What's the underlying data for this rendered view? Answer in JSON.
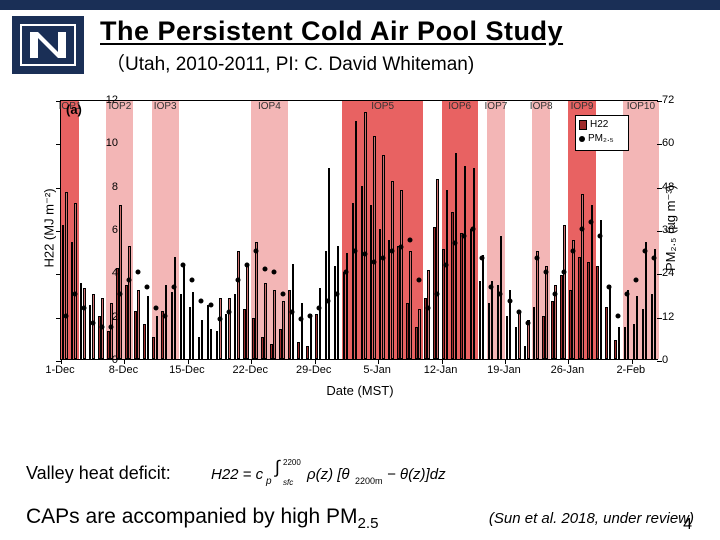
{
  "header": {
    "title": "The Persistent Cold Air Pool Study",
    "subtitle": "（Utah, 2010-2011, PI: C. David Whiteman)"
  },
  "chart": {
    "panel_label": "(a)",
    "y_left": {
      "label": "H22 (MJ m⁻²)",
      "min": 0,
      "max": 12,
      "ticks": [
        0,
        2,
        4,
        6,
        8,
        10,
        12
      ]
    },
    "y_right": {
      "label": "PM₂.₅ (µg m⁻³)",
      "min": 0,
      "max": 72,
      "ticks": [
        0,
        12,
        24,
        36,
        48,
        60,
        72
      ]
    },
    "x": {
      "label": "Date (MST)",
      "ticks": [
        "1-Dec",
        "8-Dec",
        "15-Dec",
        "22-Dec",
        "29-Dec",
        "5-Jan",
        "12-Jan",
        "19-Jan",
        "26-Jan",
        "2-Feb"
      ],
      "tick_days": [
        0,
        7,
        14,
        21,
        28,
        35,
        42,
        49,
        56,
        63
      ],
      "n_days": 66
    },
    "legend": {
      "items": [
        "H22",
        "PM₂.₅"
      ]
    },
    "iop_labels": [
      "IOP1",
      "IOP2",
      "IOP3",
      "IOP4",
      "IOP5",
      "IOP6",
      "IOP7",
      "IOP8",
      "IOP9",
      "IOP10"
    ],
    "iop_bands": [
      {
        "start": 0,
        "end": 2,
        "strong": true
      },
      {
        "start": 5,
        "end": 8,
        "strong": false
      },
      {
        "start": 10,
        "end": 13,
        "strong": false
      },
      {
        "start": 21,
        "end": 25,
        "strong": false
      },
      {
        "start": 31,
        "end": 40,
        "strong": true
      },
      {
        "start": 42,
        "end": 46,
        "strong": true
      },
      {
        "start": 47,
        "end": 49,
        "strong": false
      },
      {
        "start": 52,
        "end": 54,
        "strong": false
      },
      {
        "start": 56,
        "end": 59,
        "strong": true
      },
      {
        "start": 62,
        "end": 66,
        "strong": false
      }
    ],
    "h22_pairs": [
      [
        6.2,
        7.7
      ],
      [
        5.4,
        7.2
      ],
      [
        3.5,
        3.3
      ],
      [
        2.5,
        3.0
      ],
      [
        2.0,
        2.8
      ],
      [
        1.3,
        2.6
      ],
      [
        4.2,
        7.1
      ],
      [
        3.4,
        5.2
      ],
      [
        2.2,
        3.2
      ],
      [
        1.6,
        2.9
      ],
      [
        1.0,
        2.0
      ],
      [
        2.2,
        3.4
      ],
      [
        3.1,
        4.7
      ],
      [
        3.0,
        4.4
      ],
      [
        2.4,
        3.1
      ],
      [
        1.0,
        1.8
      ],
      [
        2.5,
        1.4
      ],
      [
        1.3,
        2.8
      ],
      [
        2.1,
        2.8
      ],
      [
        3.0,
        5.0
      ],
      [
        2.3,
        4.3
      ],
      [
        1.9,
        5.4
      ],
      [
        1.0,
        3.5
      ],
      [
        0.7,
        3.2
      ],
      [
        1.4,
        2.7
      ],
      [
        3.2,
        4.4
      ],
      [
        0.8,
        2.6
      ],
      [
        0.6,
        2.1
      ],
      [
        2.1,
        3.3
      ],
      [
        5.0,
        8.8
      ],
      [
        4.3,
        5.2
      ],
      [
        4.0,
        4.9
      ],
      [
        7.2,
        11.0
      ],
      [
        8.0,
        11.4
      ],
      [
        7.1,
        10.3
      ],
      [
        6.0,
        9.4
      ],
      [
        5.5,
        8.2
      ],
      [
        5.2,
        7.8
      ],
      [
        2.6,
        5.0
      ],
      [
        1.5,
        2.3
      ],
      [
        2.8,
        4.1
      ],
      [
        6.1,
        8.3
      ],
      [
        5.1,
        7.8
      ],
      [
        6.8,
        9.5
      ],
      [
        5.8,
        8.9
      ],
      [
        6.0,
        8.8
      ],
      [
        3.6,
        4.8
      ],
      [
        2.6,
        3.6
      ],
      [
        3.4,
        5.7
      ],
      [
        2.0,
        3.2
      ],
      [
        1.5,
        2.2
      ],
      [
        0.6,
        1.8
      ],
      [
        2.4,
        5.0
      ],
      [
        2.0,
        4.3
      ],
      [
        2.7,
        3.4
      ],
      [
        3.9,
        6.2
      ],
      [
        3.2,
        5.5
      ],
      [
        4.7,
        7.6
      ],
      [
        4.5,
        7.1
      ],
      [
        4.3,
        6.4
      ],
      [
        2.4,
        3.4
      ],
      [
        0.9,
        1.5
      ],
      [
        1.5,
        3.2
      ],
      [
        1.6,
        2.9
      ],
      [
        2.3,
        5.4
      ],
      [
        3.0,
        5.1
      ]
    ],
    "pm25": [
      12,
      18,
      14,
      10,
      9,
      9,
      18,
      22,
      24,
      20,
      14,
      12,
      20,
      26,
      22,
      16,
      15,
      11,
      13,
      22,
      26,
      30,
      25,
      24,
      18,
      13,
      11,
      12,
      14,
      16,
      18,
      24,
      30,
      29,
      27,
      28,
      30,
      31,
      33,
      22,
      14,
      18,
      26,
      32,
      34,
      36,
      28,
      20,
      18,
      16,
      13,
      10,
      28,
      24,
      18,
      24,
      30,
      36,
      38,
      34,
      20,
      12,
      18,
      22,
      30,
      28
    ],
    "colors": {
      "bar_fill": "#9e2b2b",
      "bar_fill_light": "#cd6f6f",
      "bar_stroke": "#000000",
      "band_light": "#f3b6b6",
      "band_strong": "#e86262",
      "dot": "#000000",
      "border": "#000000",
      "bg": "#ffffff"
    }
  },
  "hd_label": "Valley heat deficit:",
  "caps_line": "CAPs are accompanied by high PM",
  "caps_sub": "2.5",
  "citation": "(Sun et al. 2018, under review)",
  "pagenum": "4"
}
